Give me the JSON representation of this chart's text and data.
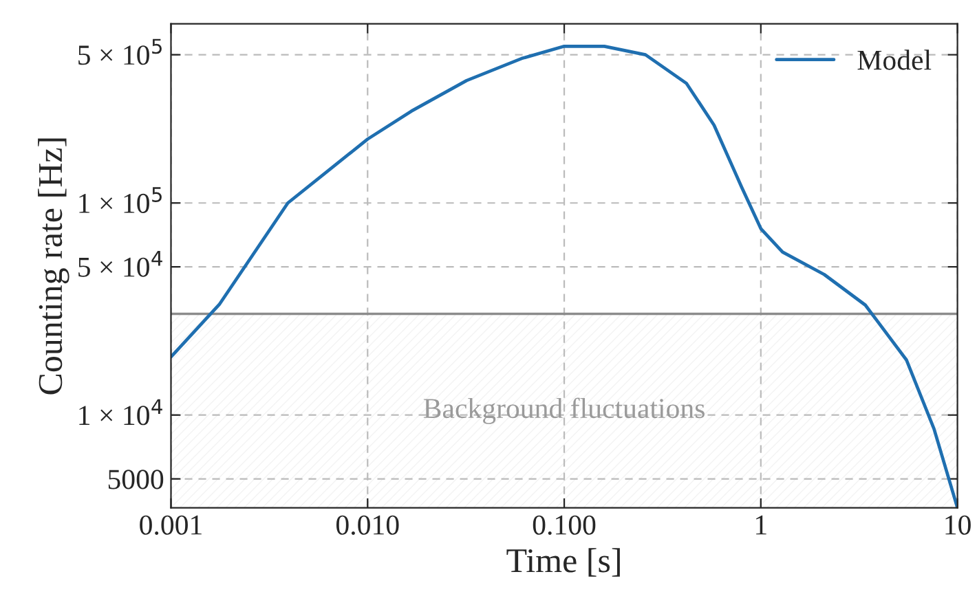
{
  "chart_data": {
    "type": "line",
    "xlabel": "Time [s]",
    "ylabel": "Counting rate [Hz]",
    "log": "xy",
    "series": [
      {
        "name": "Model",
        "color": "#1f6fb0",
        "x": [
          0.001,
          0.00176,
          0.00393,
          0.01,
          0.0167,
          0.0319,
          0.0607,
          0.1,
          0.16,
          0.259,
          0.419,
          0.578,
          0.798,
          1.0,
          1.29,
          2.1,
          3.4,
          5.5,
          7.6,
          10
        ],
        "values": [
          18800,
          33200,
          100000,
          200000,
          271000,
          378000,
          480000,
          548000,
          548000,
          500000,
          366000,
          233000,
          119000,
          75700,
          58700,
          46000,
          33000,
          18200,
          8600,
          3650
        ]
      }
    ],
    "xlim": [
      0.001,
      10
    ],
    "ylim": [
      3650,
      700000
    ],
    "xticks": [
      0.001,
      {
        "value": 0.01,
        "label": "0.010"
      },
      {
        "value": 0.1,
        "label": "0.100"
      },
      1,
      10
    ],
    "yticks": [
      5000,
      {
        "value": 10000,
        "label": "1 × 10$^{4}$"
      },
      {
        "value": 50000,
        "label": "5 × 10$^{4}$"
      },
      {
        "value": 100000,
        "label": "1 × 10$^{5}$"
      },
      {
        "value": 500000,
        "label": "5 × 10$^{5}$"
      }
    ],
    "ref_lines": [
      {
        "axis": "y",
        "value": 30000,
        "color": "#8c8c8c",
        "line_style": "solid"
      }
    ],
    "bands": [
      {
        "axis": "y",
        "from": 3650,
        "to": 30000,
        "label": "Background fluctuations",
        "color": "#9a9a9a"
      }
    ],
    "grid": true,
    "legend": "top right",
    "line_style": "solid",
    "marker": "none"
  }
}
